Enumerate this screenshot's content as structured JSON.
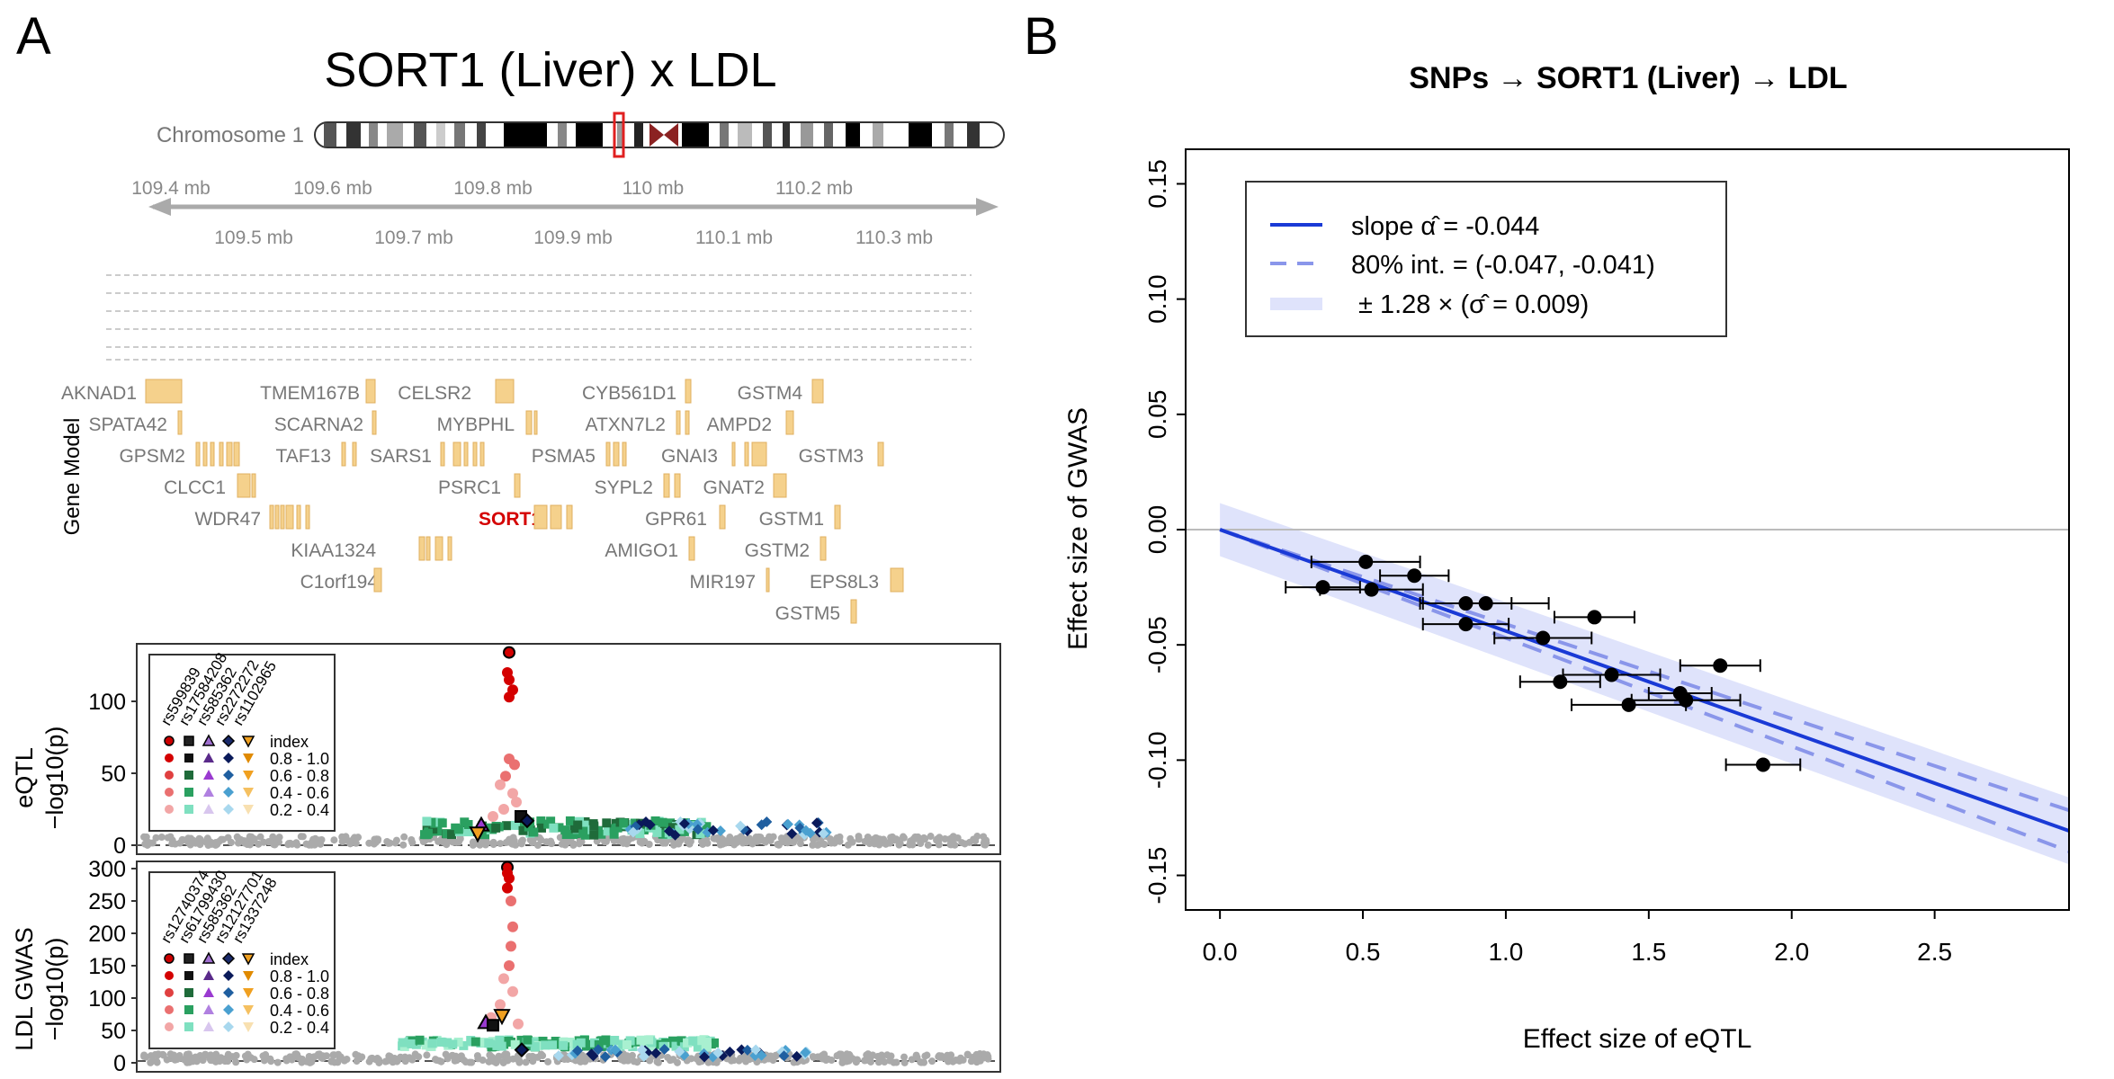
{
  "panel_a": {
    "label": "A",
    "title": "SORT1 (Liver) x LDL",
    "chromosome_label": "Chromosome 1",
    "axis_top_ticks": [
      "109.4 mb",
      "109.6 mb",
      "109.8 mb",
      "110 mb",
      "110.2 mb"
    ],
    "axis_bottom_ticks": [
      "109.5 mb",
      "109.7 mb",
      "109.9 mb",
      "110.1 mb",
      "110.3 mb"
    ],
    "gene_model_label": "Gene Model",
    "genes": [
      {
        "name": "AKNAD1",
        "highlight": false
      },
      {
        "name": "TMEM167B",
        "highlight": false
      },
      {
        "name": "CELSR2",
        "highlight": false
      },
      {
        "name": "CYB561D1",
        "highlight": false
      },
      {
        "name": "GSTM4",
        "highlight": false
      },
      {
        "name": "SPATA42",
        "highlight": false
      },
      {
        "name": "SCARNA2",
        "highlight": false
      },
      {
        "name": "MYBPHL",
        "highlight": false
      },
      {
        "name": "ATXN7L2",
        "highlight": false
      },
      {
        "name": "AMPD2",
        "highlight": false
      },
      {
        "name": "GPSM2",
        "highlight": false
      },
      {
        "name": "TAF13",
        "highlight": false
      },
      {
        "name": "SARS1",
        "highlight": false
      },
      {
        "name": "PSMA5",
        "highlight": false
      },
      {
        "name": "GNAI3",
        "highlight": false
      },
      {
        "name": "GSTM3",
        "highlight": false
      },
      {
        "name": "CLCC1",
        "highlight": false
      },
      {
        "name": "PSRC1",
        "highlight": false
      },
      {
        "name": "SYPL2",
        "highlight": false
      },
      {
        "name": "GNAT2",
        "highlight": false
      },
      {
        "name": "WDR47",
        "highlight": false
      },
      {
        "name": "SORT1",
        "highlight": true
      },
      {
        "name": "GPR61",
        "highlight": false
      },
      {
        "name": "GSTM1",
        "highlight": false
      },
      {
        "name": "KIAA1324",
        "highlight": false
      },
      {
        "name": "AMIGO1",
        "highlight": false
      },
      {
        "name": "GSTM2",
        "highlight": false
      },
      {
        "name": "C1orf194",
        "highlight": false
      },
      {
        "name": "MIR197",
        "highlight": false
      },
      {
        "name": "EPS8L3",
        "highlight": false
      },
      {
        "name": "GSTM5",
        "highlight": false
      }
    ],
    "eqtl": {
      "ylabel_line1": "eQTL",
      "ylabel_line2": "−log10(p)",
      "yticks": [
        "0",
        "50",
        "100"
      ],
      "legend_rsids": [
        "rs599839",
        "rs17584208",
        "rs585362",
        "rs2272272",
        "rs1102965"
      ],
      "legend_ranges": [
        "index",
        "0.8 - 1.0",
        "0.6 - 0.8",
        "0.4 - 0.6",
        "0.2 - 0.4"
      ]
    },
    "gwas": {
      "ylabel_line1": "LDL GWAS",
      "ylabel_line2": "−log10(p)",
      "yticks": [
        "0",
        "50",
        "100",
        "150",
        "200",
        "250",
        "300"
      ],
      "legend_rsids": [
        "rs12740374",
        "rs61799430",
        "rs585362",
        "rs12127701",
        "rs1337248"
      ],
      "legend_ranges": [
        "index",
        "0.8 - 1.0",
        "0.6 - 0.8",
        "0.4 - 0.6",
        "0.2 - 0.4"
      ]
    },
    "ld_colors": {
      "red": [
        "#d40000",
        "#e04040",
        "#ea7070",
        "#f2a6a6"
      ],
      "black": [
        "#111111",
        "#1f6b3a",
        "#2aa060",
        "#7fe0c0"
      ],
      "purple": [
        "#5a2a8a",
        "#9a3ad0",
        "#b080e0",
        "#d8c6ee"
      ],
      "navy": [
        "#0a1a5a",
        "#1f5fa0",
        "#4aa0d0",
        "#a8d8ee"
      ],
      "orange": [
        "#e08a00",
        "#f0a020",
        "#f5c060",
        "#f8e0b0"
      ]
    }
  },
  "panel_b": {
    "label": "B",
    "title": "SNPs → SORT1 (Liver) → LDL",
    "legend": {
      "slope_text": "slope α̂ = -0.044",
      "interval_text": "80% int. = (-0.047, -0.041)",
      "sigma_text": "± 1.28 × (σ̂ = 0.009)"
    }
  },
  "chart_data": {
    "type": "scatter",
    "title": "SNPs → SORT1 (Liver) → LDL",
    "xlabel": "Effect size of eQTL",
    "ylabel": "Effect size of GWAS",
    "xlim": [
      -0.12,
      2.97
    ],
    "ylim": [
      -0.165,
      0.165
    ],
    "xticks": [
      0.0,
      0.5,
      1.0,
      1.5,
      2.0,
      2.5
    ],
    "xtick_labels": [
      "0.0",
      "0.5",
      "1.0",
      "1.5",
      "2.0",
      "2.5"
    ],
    "yticks": [
      -0.15,
      -0.1,
      -0.05,
      0.0,
      0.05,
      0.1,
      0.15
    ],
    "ytick_labels": [
      "-0.15",
      "-0.10",
      "-0.05",
      "0.00",
      "0.05",
      "0.10",
      "0.15"
    ],
    "grid": false,
    "legend_position": "top-left",
    "slope": -0.044,
    "interval": [
      -0.047,
      -0.041
    ],
    "band_halfwidth_at_zero": 0.0115,
    "band_halfwidth_at_max": 0.0145,
    "line_color": "#1a3ad6",
    "interval_color": "#8a96ea",
    "band_color": "#dfe3fb",
    "points": [
      {
        "x": 0.36,
        "y": -0.025,
        "xerr": 0.13
      },
      {
        "x": 0.51,
        "y": -0.014,
        "xerr": 0.19
      },
      {
        "x": 0.53,
        "y": -0.026,
        "xerr": 0.18
      },
      {
        "x": 0.68,
        "y": -0.02,
        "xerr": 0.12
      },
      {
        "x": 0.86,
        "y": -0.032,
        "xerr": 0.16
      },
      {
        "x": 0.86,
        "y": -0.041,
        "xerr": 0.15
      },
      {
        "x": 0.93,
        "y": -0.032,
        "xerr": 0.22
      },
      {
        "x": 1.13,
        "y": -0.047,
        "xerr": 0.17
      },
      {
        "x": 1.19,
        "y": -0.066,
        "xerr": 0.14
      },
      {
        "x": 1.31,
        "y": -0.038,
        "xerr": 0.14
      },
      {
        "x": 1.37,
        "y": -0.063,
        "xerr": 0.17
      },
      {
        "x": 1.43,
        "y": -0.076,
        "xerr": 0.2
      },
      {
        "x": 1.61,
        "y": -0.071,
        "xerr": 0.11
      },
      {
        "x": 1.63,
        "y": -0.074,
        "xerr": 0.19
      },
      {
        "x": 1.75,
        "y": -0.059,
        "xerr": 0.14
      },
      {
        "x": 1.9,
        "y": -0.102,
        "xerr": 0.13
      }
    ]
  }
}
